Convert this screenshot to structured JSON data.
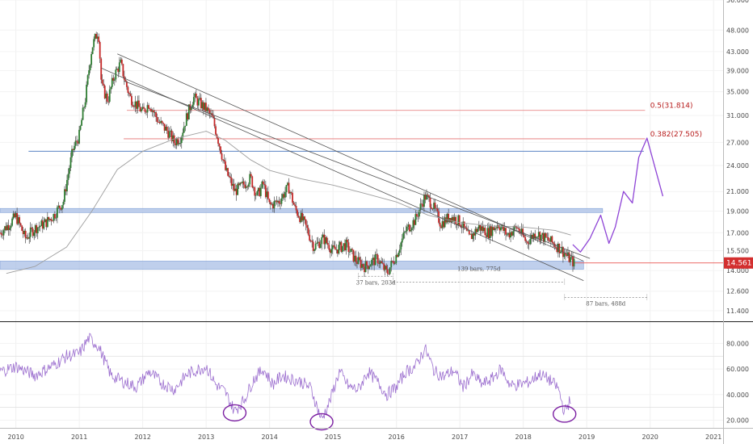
{
  "chart_data": {
    "type": "candlestick",
    "price_panel": {
      "yscale": "log",
      "ylim": [
        10.8,
        56.0
      ],
      "yticks": [
        "56.000",
        "48.000",
        "43.000",
        "39.000",
        "35.000",
        "31.000",
        "27.000",
        "24.000",
        "21.000",
        "19.000",
        "17.000",
        "15.500",
        "14.000",
        "12.600",
        "11.400"
      ],
      "ytick_values": [
        56,
        48,
        43,
        39,
        35,
        31,
        27,
        24,
        21,
        19,
        17,
        15.5,
        14,
        12.6,
        11.4
      ],
      "last_price": "14.561",
      "last_price_value": 14.561,
      "fib_levels": [
        {
          "label": "0.5(31.814)",
          "value": 31.814,
          "x_start": 2011.75
        },
        {
          "label": "0.382(27.505)",
          "value": 27.505,
          "x_start": 2011.7
        }
      ],
      "horizontal_lines": [
        {
          "value": 25.8,
          "x_start": 2010.2,
          "x_end": 2019.9,
          "color": "#5b84c4"
        }
      ],
      "support_zones": [
        {
          "low": 18.85,
          "high": 19.25,
          "x_start": 2009.75,
          "x_end": 2019.25
        },
        {
          "low": 14.1,
          "high": 14.7,
          "x_start": 2009.75,
          "x_end": 2018.95
        }
      ],
      "trendlines": [
        {
          "from": [
            2011.6,
            42.5
          ],
          "to": [
            2018.95,
            14.7
          ]
        },
        {
          "from": [
            2011.35,
            39.5
          ],
          "to": [
            2018.95,
            13.3
          ]
        },
        {
          "from": [
            2011.7,
            37.0
          ],
          "to": [
            2019.05,
            14.9
          ]
        }
      ],
      "moving_average": {
        "x": [
          2009.85,
          2010.3,
          2010.8,
          2011.2,
          2011.6,
          2012.0,
          2012.5,
          2013.0,
          2013.3,
          2013.7,
          2014.0,
          2014.5,
          2015.0,
          2015.5,
          2016.0,
          2016.5,
          2017.0,
          2017.5,
          2018.0,
          2018.5,
          2018.75
        ],
        "y": [
          13.8,
          14.3,
          15.8,
          19.0,
          23.5,
          25.8,
          27.5,
          28.6,
          27.3,
          24.7,
          23.4,
          22.4,
          21.7,
          20.8,
          19.9,
          18.6,
          17.9,
          17.6,
          17.5,
          17.2,
          16.8
        ]
      },
      "projection": {
        "x": [
          2018.78,
          2018.9,
          2019.05,
          2019.22,
          2019.35,
          2019.45,
          2019.58,
          2019.72,
          2019.82,
          2019.95,
          2020.05,
          2020.2
        ],
        "y": [
          16.0,
          15.4,
          16.5,
          18.6,
          16.1,
          17.5,
          21.0,
          19.8,
          25.0,
          27.6,
          24.5,
          20.5
        ]
      },
      "measurements": [
        {
          "label": "37 bars, 203d",
          "x_start": 2015.4,
          "x_end": 2015.95,
          "value": 13.6
        },
        {
          "label": "139 bars, 775d",
          "x_start": 2015.95,
          "x_end": 2018.65,
          "value": 13.2
        },
        {
          "label": "87 bars, 488d",
          "x_start": 2018.65,
          "x_end": 2019.95,
          "value": 12.2
        }
      ]
    },
    "rsi_panel": {
      "ylim": [
        14,
        96
      ],
      "yticks": [
        "80.000",
        "60.000",
        "40.000",
        "20.000"
      ],
      "ytick_values": [
        80,
        60,
        40,
        20
      ],
      "bands": [
        70,
        30
      ],
      "highlighted_lows_x": [
        2013.45,
        2014.82,
        2018.65
      ]
    },
    "x_axis": {
      "ticks": [
        "2010",
        "2011",
        "2012",
        "2013",
        "2014",
        "2015",
        "2016",
        "2017",
        "2018",
        "2019",
        "2020",
        "2021"
      ],
      "tick_values": [
        2010,
        2011,
        2012,
        2013,
        2014,
        2015,
        2016,
        2017,
        2018,
        2019,
        2020,
        2021
      ],
      "xlim": [
        2009.75,
        2021.15
      ]
    },
    "price_path": {
      "x": [
        2009.75,
        2009.9,
        2010.0,
        2010.15,
        2010.3,
        2010.45,
        2010.6,
        2010.75,
        2010.9,
        2011.0,
        2011.1,
        2011.2,
        2011.3,
        2011.35,
        2011.45,
        2011.55,
        2011.65,
        2011.72,
        2011.8,
        2012.0,
        2012.1,
        2012.25,
        2012.4,
        2012.5,
        2012.6,
        2012.7,
        2012.8,
        2013.0,
        2013.1,
        2013.2,
        2013.3,
        2013.45,
        2013.55,
        2013.7,
        2013.8,
        2013.9,
        2014.0,
        2014.15,
        2014.3,
        2014.4,
        2014.55,
        2014.7,
        2014.85,
        2015.0,
        2015.2,
        2015.35,
        2015.5,
        2015.7,
        2015.85,
        2016.0,
        2016.15,
        2016.3,
        2016.45,
        2016.55,
        2016.7,
        2016.85,
        2017.0,
        2017.15,
        2017.3,
        2017.45,
        2017.6,
        2017.75,
        2017.9,
        2018.05,
        2018.2,
        2018.35,
        2018.5,
        2018.6,
        2018.7,
        2018.8
      ],
      "y": [
        17.0,
        17.8,
        18.5,
        16.5,
        17.4,
        17.8,
        18.6,
        20.0,
        26.0,
        28.0,
        34.0,
        44.0,
        48.0,
        36.0,
        33.5,
        38.0,
        40.5,
        37.0,
        34.0,
        31.5,
        33.0,
        30.0,
        28.5,
        27.0,
        27.8,
        31.0,
        34.0,
        32.0,
        30.5,
        27.0,
        23.5,
        21.0,
        21.5,
        22.5,
        20.5,
        21.8,
        19.5,
        20.0,
        21.5,
        19.2,
        17.8,
        15.8,
        16.5,
        15.5,
        16.0,
        14.8,
        14.3,
        14.9,
        13.8,
        15.2,
        17.2,
        18.2,
        20.5,
        19.8,
        17.8,
        18.5,
        18.0,
        16.5,
        17.5,
        17.0,
        17.8,
        16.8,
        17.5,
        16.2,
        17.0,
        16.5,
        16.0,
        15.6,
        15.0,
        14.56
      ]
    },
    "rsi_path": {
      "x": [
        2009.75,
        2010.0,
        2010.3,
        2010.6,
        2010.8,
        2011.0,
        2011.15,
        2011.3,
        2011.5,
        2011.7,
        2011.9,
        2012.1,
        2012.3,
        2012.5,
        2012.7,
        2012.9,
        2013.0,
        2013.15,
        2013.3,
        2013.45,
        2013.6,
        2013.75,
        2013.9,
        2014.05,
        2014.2,
        2014.35,
        2014.5,
        2014.65,
        2014.82,
        2014.95,
        2015.1,
        2015.25,
        2015.4,
        2015.55,
        2015.7,
        2015.85,
        2016.0,
        2016.15,
        2016.3,
        2016.45,
        2016.6,
        2016.75,
        2016.9,
        2017.05,
        2017.2,
        2017.35,
        2017.5,
        2017.65,
        2017.8,
        2017.95,
        2018.1,
        2018.25,
        2018.4,
        2018.55,
        2018.65,
        2018.75
      ],
      "y": [
        58,
        62,
        55,
        63,
        70,
        72,
        84,
        78,
        55,
        50,
        46,
        58,
        49,
        44,
        56,
        60,
        62,
        48,
        42,
        27,
        36,
        52,
        60,
        48,
        55,
        52,
        50,
        45,
        20,
        35,
        58,
        46,
        44,
        58,
        50,
        40,
        46,
        58,
        62,
        76,
        58,
        54,
        59,
        46,
        56,
        48,
        52,
        60,
        47,
        48,
        50,
        56,
        52,
        45,
        26,
        37
      ]
    }
  }
}
